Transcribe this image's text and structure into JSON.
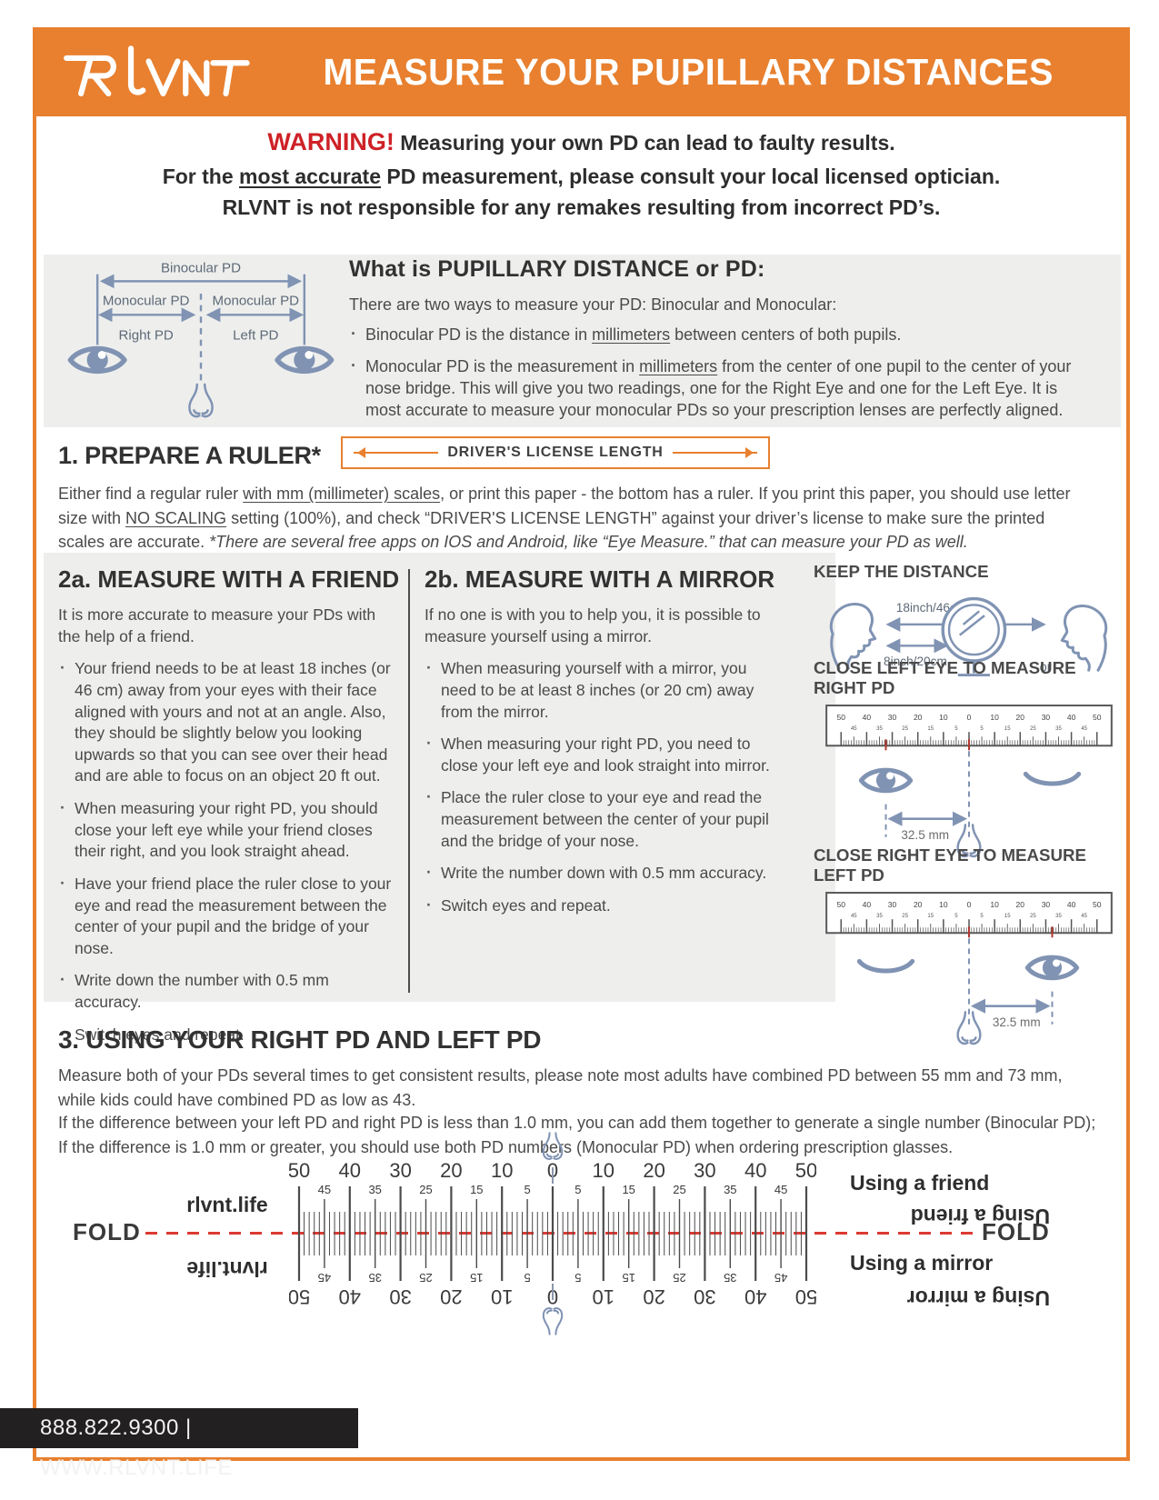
{
  "header": {
    "logo": "RLVNT",
    "title": "MEASURE YOUR PUPILLARY DISTANCES"
  },
  "warning": {
    "label": "WARNING!",
    "line1_rest": " Measuring your own PD can lead to faulty results.",
    "line2_pre": "For the ",
    "line2_u": "most accurate",
    "line2_post": " PD measurement, please consult your local licensed optician.",
    "line3": "RLVNT is not responsible for any remakes resulting from incorrect PD’s."
  },
  "intro": {
    "title": "What is PUPILLARY DISTANCE or PD:",
    "lead": "There are two ways to measure your PD: Binocular and Monocular:",
    "b1_pre": "Binocular PD is the distance in ",
    "b1_u": "millimeters",
    "b1_post": " between centers of both pupils.",
    "b2_pre": "Monocular PD is the measurement in ",
    "b2_u": "millimeters",
    "b2_post": " from the center of one pupil to the center of your nose bridge. This will give you two readings, one for the Right Eye and one for the Left Eye. It is most accurate to measure your monocular PDs so your prescription lenses are perfectly aligned.",
    "diagram": {
      "binocular": "Binocular PD",
      "monocular_left": "Monocular PD",
      "monocular_right": "Monocular PD",
      "right_pd": "Right PD",
      "left_pd": "Left PD"
    }
  },
  "prepare": {
    "title": "1. PREPARE A RULER*",
    "license_label": "DRIVER'S LICENSE LENGTH",
    "p_pre": "Either find a regular ruler ",
    "p_u1": "with mm (millimeter) scales",
    "p_mid1": ", or print this paper - the bottom has a ruler. If you print this paper, you should use letter size with ",
    "p_u2": "NO SCALING",
    "p_mid2": " setting (100%), and check “DRIVER'S LICENSE LENGTH” against your driver’s license to make sure the printed scales are accurate. ",
    "p_italic": "*There are several free apps on IOS and Android, like “Eye Measure.” that can measure your PD as well."
  },
  "friend": {
    "title": "2a. MEASURE WITH A FRIEND",
    "lead": "It is more accurate to measure your PDs with the help of a friend.",
    "bullets": [
      "Your friend needs to be at least 18 inches (or 46 cm) away from your eyes with their face aligned with yours and not at an angle. Also, they should be slightly below you looking upwards so that you can see over their head and are able to focus on an object 20 ft out.",
      "When measuring your right PD, you should close your left eye while your friend closes their right, and you look straight ahead.",
      "Have your friend place the ruler close to your eye and read the measurement between the center of your pupil and the bridge of your nose.",
      "Write down the number with 0.5 mm accuracy.",
      "Switch eyes and repeat."
    ]
  },
  "mirror": {
    "title": "2b. MEASURE WITH A MIRROR",
    "lead": "If no one is with you to help you, it is possible to measure yourself using a mirror.",
    "bullets": [
      "When measuring yourself with a mirror, you need to be at least 8 inches (or 20 cm) away from the mirror.",
      "When measuring your right PD, you need to close your left eye and look straight into mirror.",
      "Place the ruler close to your eye and read the measurement between the center of your pupil and the bridge of your nose.",
      "Write the number down with 0.5 mm accuracy.",
      "Switch eyes and repeat."
    ]
  },
  "aside": {
    "keep_title": "KEEP THE DISTANCE",
    "dist_far": "18inch/46cm",
    "dist_near": "8inch/20cm",
    "or": "or",
    "close_left": "CLOSE LEFT EYE TO MEASURE RIGHT PD",
    "close_right": "CLOSE RIGHT EYE TO MEASURE LEFT PD",
    "mm_label": "32.5 mm"
  },
  "using": {
    "title": "3. USING YOUR RIGHT PD AND LEFT PD",
    "p1": "Measure both of your PDs several times to get consistent results, please note most adults have combined PD between 55 mm and 73 mm, while kids could have combined PD as low as 43.",
    "p2": "If the difference between your left PD and right PD is less than 1.0 mm, you can add them together to generate a single number (Binocular PD); If the difference is 1.0 mm or greater, you should use both PD numbers (Monocular PD) when ordering prescription glasses."
  },
  "ruler": {
    "fold_label": "FOLD",
    "site": "rlvnt.life",
    "friend_label": "Using a friend",
    "mirror_label": "Using a mirror",
    "major_labels": [
      "50",
      "40",
      "30",
      "20",
      "10",
      "0",
      "10",
      "20",
      "30",
      "40",
      "50"
    ],
    "minor_labels": [
      "45",
      "35",
      "25",
      "15",
      "5",
      "5",
      "15",
      "25",
      "35",
      "45"
    ]
  },
  "footer": {
    "contact": "888.822.9300  |  WWW.RLVNT.LIFE"
  },
  "colors": {
    "accent_orange": "#E8802F",
    "warning_red": "#CE2127",
    "diagram_slate": "#8093B3",
    "fold_red": "#DB3A32",
    "footer_bg": "#232021"
  }
}
